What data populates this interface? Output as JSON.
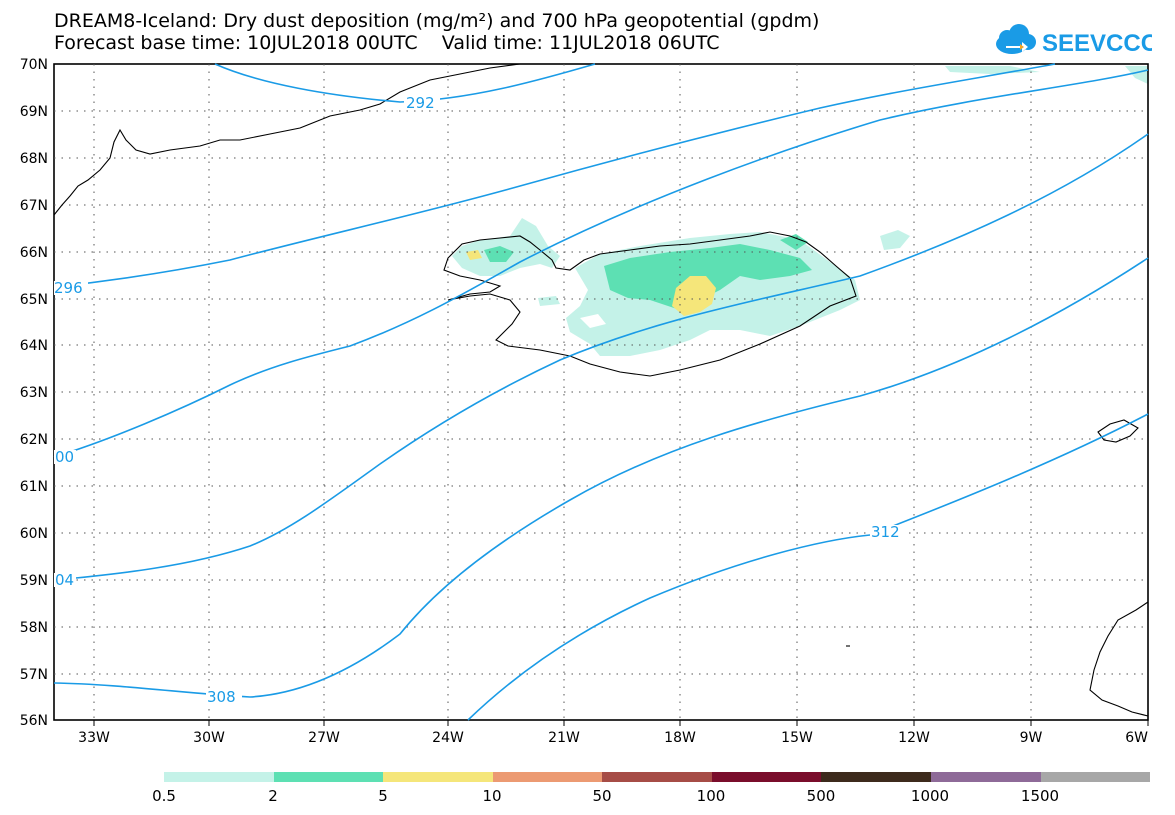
{
  "header": {
    "title_line1": "DREAM8-Iceland: Dry dust deposition (mg/m²) and 700 hPa geopotential (gpdm)",
    "title_line2": "Forecast base time: 10JUL2018 00UTC    Valid time: 11JUL2018 06UTC"
  },
  "logo": {
    "text": "SEEVCCC",
    "icon": "cloud-icon",
    "color": "#1a9be6"
  },
  "axes": {
    "lat_labels": [
      "70N",
      "69N",
      "68N",
      "67N",
      "66N",
      "65N",
      "64N",
      "63N",
      "62N",
      "61N",
      "60N",
      "59N",
      "58N",
      "57N",
      "56N"
    ],
    "lon_labels": [
      "33W",
      "30W",
      "27W",
      "24W",
      "21W",
      "18W",
      "15W",
      "12W",
      "9W",
      "6W"
    ]
  },
  "contours": {
    "color": "#1a9be6",
    "labels": [
      "292",
      "296",
      "00",
      "04",
      "308",
      "312"
    ]
  },
  "legend": {
    "colors": [
      "#c4f2e8",
      "#5de0b3",
      "#f5e67a",
      "#ec9a72",
      "#a64c46",
      "#7a0d2b",
      "#3d2a1c",
      "#8e6a98",
      "#a7a7a7"
    ],
    "labels": [
      "0.5",
      "2",
      "5",
      "10",
      "50",
      "100",
      "500",
      "1000",
      "1500"
    ]
  }
}
